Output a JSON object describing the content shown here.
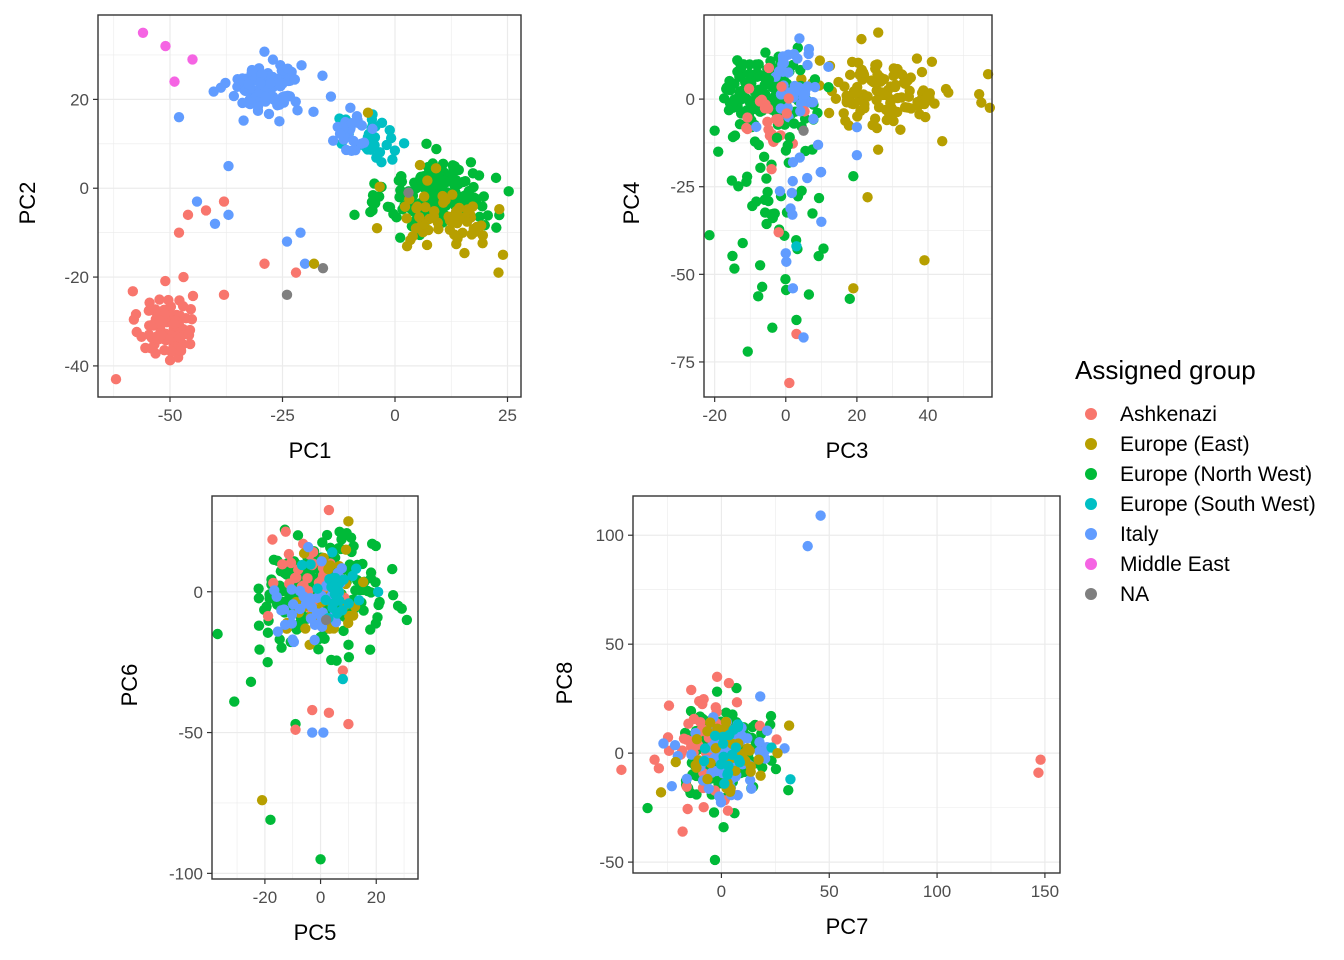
{
  "legend": {
    "title": "Assigned group",
    "groups": [
      {
        "name": "Ashkenazi",
        "color": "#F8766D"
      },
      {
        "name": "Europe (East)",
        "color": "#B79F00"
      },
      {
        "name": "Europe (North West)",
        "color": "#00BA38"
      },
      {
        "name": "Europe (South West)",
        "color": "#00BFC4"
      },
      {
        "name": "Italy",
        "color": "#619CFF"
      },
      {
        "name": "Middle East",
        "color": "#F564E3"
      },
      {
        "name": "NA",
        "color": "#7F7F7F"
      }
    ]
  },
  "chart_data": [
    {
      "type": "scatter",
      "xlabel": "PC1",
      "ylabel": "PC2",
      "xlim": [
        -66,
        28
      ],
      "ylim": [
        -47,
        39
      ],
      "xticks": [
        -50,
        -25,
        0,
        25
      ],
      "yticks": [
        -40,
        -20,
        0,
        20
      ],
      "grid": true,
      "clusters": [
        {
          "group": "Ashkenazi",
          "cx": -51,
          "cy": -31,
          "sx": 3,
          "sy": 4,
          "n": 90
        },
        {
          "group": "Italy",
          "cx": -29,
          "cy": 23,
          "sx": 4,
          "sy": 3,
          "n": 110
        },
        {
          "group": "Europe (North West)",
          "cx": 10,
          "cy": -2,
          "sx": 6,
          "sy": 4,
          "n": 160
        },
        {
          "group": "Europe (East)",
          "cx": 12,
          "cy": -6,
          "sx": 6,
          "sy": 4,
          "n": 60
        },
        {
          "group": "Europe (South West)",
          "cx": -5,
          "cy": 10,
          "sx": 4,
          "sy": 3,
          "n": 30
        },
        {
          "group": "Italy",
          "cx": -10,
          "cy": 14,
          "sx": 3,
          "sy": 3,
          "n": 25
        }
      ],
      "points": [
        {
          "group": "Middle East",
          "x": -56,
          "y": 35
        },
        {
          "group": "Middle East",
          "x": -51,
          "y": 32
        },
        {
          "group": "Middle East",
          "x": -49,
          "y": 24
        },
        {
          "group": "Middle East",
          "x": -45,
          "y": 29
        },
        {
          "group": "Italy",
          "x": -48,
          "y": 16
        },
        {
          "group": "Italy",
          "x": -37,
          "y": 5
        },
        {
          "group": "Italy",
          "x": -44,
          "y": -3
        },
        {
          "group": "Italy",
          "x": -40,
          "y": -8
        },
        {
          "group": "Italy",
          "x": -37,
          "y": -6
        },
        {
          "group": "Italy",
          "x": -24,
          "y": -12
        },
        {
          "group": "Italy",
          "x": -21,
          "y": -10
        },
        {
          "group": "Italy",
          "x": -20,
          "y": -17
        },
        {
          "group": "Ashkenazi",
          "x": -38,
          "y": -3
        },
        {
          "group": "Ashkenazi",
          "x": -42,
          "y": -5
        },
        {
          "group": "Ashkenazi",
          "x": -46,
          "y": -6
        },
        {
          "group": "Ashkenazi",
          "x": -48,
          "y": -10
        },
        {
          "group": "Ashkenazi",
          "x": -38,
          "y": -24
        },
        {
          "group": "Ashkenazi",
          "x": -47,
          "y": -20
        },
        {
          "group": "Ashkenazi",
          "x": -29,
          "y": -17
        },
        {
          "group": "Ashkenazi",
          "x": -22,
          "y": -19
        },
        {
          "group": "Ashkenazi",
          "x": -62,
          "y": -43
        },
        {
          "group": "NA",
          "x": -24,
          "y": -24
        },
        {
          "group": "NA",
          "x": -16,
          "y": -18
        },
        {
          "group": "NA",
          "x": 3,
          "y": -1
        },
        {
          "group": "Europe (East)",
          "x": -6,
          "y": 17
        },
        {
          "group": "Europe (East)",
          "x": -18,
          "y": -17
        },
        {
          "group": "Europe (East)",
          "x": 23,
          "y": -19
        },
        {
          "group": "Europe (East)",
          "x": 24,
          "y": -15
        },
        {
          "group": "Europe (East)",
          "x": -4,
          "y": -9
        },
        {
          "group": "Europe (North West)",
          "x": -9,
          "y": -6
        },
        {
          "group": "Europe (North West)",
          "x": -5,
          "y": -5
        },
        {
          "group": "Europe (North West)",
          "x": 7,
          "y": 10
        }
      ]
    },
    {
      "type": "scatter",
      "xlabel": "PC3",
      "ylabel": "PC4",
      "xlim": [
        -23,
        58
      ],
      "ylim": [
        -85,
        24
      ],
      "xticks": [
        -20,
        0,
        20,
        40
      ],
      "yticks": [
        -75,
        -50,
        -25,
        0
      ],
      "grid": true,
      "clusters": [
        {
          "group": "Europe (East)",
          "cx": 28,
          "cy": 2,
          "sx": 10,
          "sy": 5,
          "n": 120
        },
        {
          "group": "Europe (North West)",
          "cx": -5,
          "cy": 2,
          "sx": 6,
          "sy": 5,
          "n": 150
        },
        {
          "group": "Italy",
          "cx": 3,
          "cy": 4,
          "sx": 4,
          "sy": 5,
          "n": 40
        },
        {
          "group": "Ashkenazi",
          "cx": -4,
          "cy": -4,
          "sx": 5,
          "sy": 5,
          "n": 25
        },
        {
          "group": "Europe (North West)",
          "cx": -3,
          "cy": -30,
          "sx": 8,
          "sy": 15,
          "n": 55
        },
        {
          "group": "Italy",
          "cx": 2,
          "cy": -25,
          "sx": 5,
          "sy": 15,
          "n": 15
        }
      ],
      "points": [
        {
          "group": "Ashkenazi",
          "x": 1,
          "y": -81
        },
        {
          "group": "Ashkenazi",
          "x": 3,
          "y": -67
        },
        {
          "group": "Ashkenazi",
          "x": -2,
          "y": -38
        },
        {
          "group": "Ashkenazi",
          "x": -4,
          "y": -20
        },
        {
          "group": "Italy",
          "x": 5,
          "y": -68
        },
        {
          "group": "Italy",
          "x": 2,
          "y": -54
        },
        {
          "group": "Italy",
          "x": 10,
          "y": -35
        },
        {
          "group": "Italy",
          "x": 20,
          "y": -8
        },
        {
          "group": "Italy",
          "x": 20,
          "y": -16
        },
        {
          "group": "Italy",
          "x": 0,
          "y": -44
        },
        {
          "group": "Europe (North West)",
          "x": 3,
          "y": -63
        },
        {
          "group": "Europe (North West)",
          "x": 18,
          "y": -57
        },
        {
          "group": "Europe (North West)",
          "x": 19,
          "y": -22
        },
        {
          "group": "Europe (North West)",
          "x": -20,
          "y": -9
        },
        {
          "group": "Europe (North West)",
          "x": -19,
          "y": -15
        },
        {
          "group": "Europe (East)",
          "x": 19,
          "y": -54
        },
        {
          "group": "Europe (East)",
          "x": 39,
          "y": -46
        },
        {
          "group": "Europe (East)",
          "x": 23,
          "y": -28
        },
        {
          "group": "Europe (East)",
          "x": 26,
          "y": 19
        },
        {
          "group": "Europe (East)",
          "x": 55,
          "y": -1
        },
        {
          "group": "Europe (East)",
          "x": 44,
          "y": -12
        },
        {
          "group": "Europe (South West)",
          "x": 3,
          "y": -42
        },
        {
          "group": "NA",
          "x": 5,
          "y": -9
        }
      ]
    },
    {
      "type": "scatter",
      "xlabel": "PC5",
      "ylabel": "PC6",
      "xlim": [
        -39,
        35
      ],
      "ylim": [
        -102,
        34
      ],
      "xticks": [
        -20,
        0,
        20
      ],
      "yticks": [
        -100,
        -50,
        0
      ],
      "grid": true,
      "clusters": [
        {
          "group": "Europe (North West)",
          "cx": 0,
          "cy": 0,
          "sx": 10,
          "sy": 9,
          "n": 260
        },
        {
          "group": "Ashkenazi",
          "cx": -4,
          "cy": 5,
          "sx": 6,
          "sy": 8,
          "n": 40
        },
        {
          "group": "Europe (East)",
          "cx": 2,
          "cy": -2,
          "sx": 7,
          "sy": 7,
          "n": 35
        },
        {
          "group": "Italy",
          "cx": -3,
          "cy": -5,
          "sx": 7,
          "sy": 8,
          "n": 40
        },
        {
          "group": "Europe (South West)",
          "cx": 5,
          "cy": 0,
          "sx": 6,
          "sy": 6,
          "n": 25
        }
      ],
      "points": [
        {
          "group": "Europe (North West)",
          "x": 0,
          "y": -95
        },
        {
          "group": "Europe (North West)",
          "x": -18,
          "y": -81
        },
        {
          "group": "Europe (North West)",
          "x": -31,
          "y": -39
        },
        {
          "group": "Europe (North West)",
          "x": -25,
          "y": -32
        },
        {
          "group": "Europe (North West)",
          "x": -37,
          "y": -15
        },
        {
          "group": "Europe (North West)",
          "x": 31,
          "y": -10
        },
        {
          "group": "Europe (North West)",
          "x": -9,
          "y": -47
        },
        {
          "group": "Europe (North West)",
          "x": -19,
          "y": -25
        },
        {
          "group": "Europe (East)",
          "x": -21,
          "y": -74
        },
        {
          "group": "Europe (East)",
          "x": 10,
          "y": 25
        },
        {
          "group": "Ashkenazi",
          "x": -9,
          "y": -49
        },
        {
          "group": "Ashkenazi",
          "x": -3,
          "y": -42
        },
        {
          "group": "Ashkenazi",
          "x": 3,
          "y": -43
        },
        {
          "group": "Ashkenazi",
          "x": 10,
          "y": -47
        },
        {
          "group": "Ashkenazi",
          "x": 3,
          "y": 29
        },
        {
          "group": "Ashkenazi",
          "x": 8,
          "y": -28
        },
        {
          "group": "Italy",
          "x": -3,
          "y": -50
        },
        {
          "group": "Italy",
          "x": 1,
          "y": -50
        },
        {
          "group": "Europe (South West)",
          "x": 8,
          "y": -31
        },
        {
          "group": "NA",
          "x": 2,
          "y": -10
        }
      ]
    },
    {
      "type": "scatter",
      "xlabel": "PC7",
      "ylabel": "PC8",
      "xlim": [
        -41,
        157
      ],
      "ylim": [
        -55,
        118
      ],
      "xticks": [
        0,
        50,
        100,
        150
      ],
      "yticks": [
        -50,
        0,
        50,
        100
      ],
      "grid": true,
      "clusters": [
        {
          "group": "Europe (North West)",
          "cx": 1,
          "cy": 0,
          "sx": 9,
          "sy": 9,
          "n": 200
        },
        {
          "group": "Ashkenazi",
          "cx": -5,
          "cy": 2,
          "sx": 10,
          "sy": 11,
          "n": 55
        },
        {
          "group": "Italy",
          "cx": 2,
          "cy": -2,
          "sx": 11,
          "sy": 10,
          "n": 70
        },
        {
          "group": "Europe (East)",
          "cx": 3,
          "cy": 0,
          "sx": 9,
          "sy": 9,
          "n": 35
        },
        {
          "group": "Europe (South West)",
          "cx": 2,
          "cy": 0,
          "sx": 8,
          "sy": 8,
          "n": 20
        }
      ],
      "points": [
        {
          "group": "Italy",
          "x": 46,
          "y": 109
        },
        {
          "group": "Italy",
          "x": 40,
          "y": 95
        },
        {
          "group": "Italy",
          "x": 18,
          "y": 26
        },
        {
          "group": "Ashkenazi",
          "x": 148,
          "y": -3
        },
        {
          "group": "Ashkenazi",
          "x": 147,
          "y": -9
        },
        {
          "group": "Ashkenazi",
          "x": -2,
          "y": 35
        },
        {
          "group": "Ashkenazi",
          "x": -14,
          "y": 29
        },
        {
          "group": "Ashkenazi",
          "x": -18,
          "y": -36
        },
        {
          "group": "Ashkenazi",
          "x": -31,
          "y": -3
        },
        {
          "group": "Europe (North West)",
          "x": -3,
          "y": -49
        },
        {
          "group": "Europe (North West)",
          "x": 1,
          "y": -34
        },
        {
          "group": "Europe (North West)",
          "x": 31,
          "y": -17
        },
        {
          "group": "Europe (North West)",
          "x": 23,
          "y": 17
        },
        {
          "group": "Europe (South West)",
          "x": 32,
          "y": -12
        },
        {
          "group": "Europe (East)",
          "x": 26,
          "y": 0
        },
        {
          "group": "Europe (East)",
          "x": -28,
          "y": -18
        }
      ]
    }
  ]
}
